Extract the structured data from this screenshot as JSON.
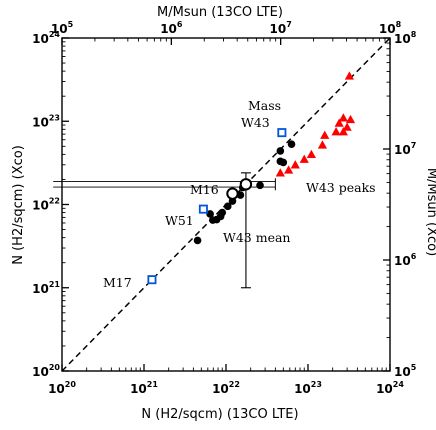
{
  "chart_data": {
    "type": "scatter",
    "title": "",
    "xlabel": "N (H2/sqcm)  (13CO LTE)",
    "ylabel": "N (H2/sqcm)  (Xco)",
    "top_xlabel": "M/Msun  (13CO LTE)",
    "right_ylabel": "M/Msun  (Xco)",
    "scale": "log",
    "xlim": [
      1e+20,
      1e+24
    ],
    "ylim": [
      1e+20,
      1e+24
    ],
    "top_xlim": [
      100000.0,
      100000000.0
    ],
    "right_ylim": [
      100000.0,
      100000000.0
    ],
    "ticks_bottom": [
      {
        "base": "10",
        "exp": "20"
      },
      {
        "base": "10",
        "exp": "21"
      },
      {
        "base": "10",
        "exp": "22"
      },
      {
        "base": "10",
        "exp": "23"
      },
      {
        "base": "10",
        "exp": "24"
      }
    ],
    "ticks_left": [
      {
        "base": "10",
        "exp": "20"
      },
      {
        "base": "10",
        "exp": "21"
      },
      {
        "base": "10",
        "exp": "22"
      },
      {
        "base": "10",
        "exp": "23"
      },
      {
        "base": "10",
        "exp": "24"
      }
    ],
    "ticks_top": [
      {
        "base": "10",
        "exp": "5"
      },
      {
        "base": "10",
        "exp": "6"
      },
      {
        "base": "10",
        "exp": "7"
      },
      {
        "base": "10",
        "exp": "8"
      }
    ],
    "ticks_right": [
      {
        "base": "10",
        "exp": "5"
      },
      {
        "base": "10",
        "exp": "6"
      },
      {
        "base": "10",
        "exp": "7"
      },
      {
        "base": "10",
        "exp": "8"
      }
    ],
    "one_to_one_line": {
      "x": [
        1e+20,
        1e+24
      ],
      "y": [
        1e+20,
        1e+24
      ],
      "style": "dashed"
    },
    "series": [
      {
        "marker": "filled-circle",
        "color": "#000000",
        "points": [
          {
            "x": 5e+22,
            "y": 3.2e+22
          },
          {
            "x": 6.3e+22,
            "y": 5.3e+22
          },
          {
            "x": 4.6e+22,
            "y": 4.4e+22
          },
          {
            "x": 4.6e+22,
            "y": 3.3e+22
          },
          {
            "x": 2.6e+22,
            "y": 1.7e+22
          },
          {
            "x": 1.6e+22,
            "y": 1.6e+22
          },
          {
            "x": 1.5e+22,
            "y": 1.3e+22
          },
          {
            "x": 1.2e+22,
            "y": 1.1e+22
          },
          {
            "x": 1.05e+22,
            "y": 9.5e+21
          },
          {
            "x": 9e+21,
            "y": 8e+21
          },
          {
            "x": 8.6e+21,
            "y": 7.2e+21
          },
          {
            "x": 7.7e+21,
            "y": 6.6e+21
          },
          {
            "x": 6.9e+21,
            "y": 6.5e+21
          },
          {
            "x": 6.4e+21,
            "y": 7.7e+21
          },
          {
            "x": 4.5e+21,
            "y": 3.7e+21
          }
        ]
      },
      {
        "marker": "filled-triangle",
        "color": "#ff0000",
        "points": [
          {
            "x": 3.2e+23,
            "y": 3.5e+23
          },
          {
            "x": 2.7e+23,
            "y": 1.1e+23
          },
          {
            "x": 3.3e+23,
            "y": 1.05e+23
          },
          {
            "x": 2.4e+23,
            "y": 9.5e+22
          },
          {
            "x": 3e+23,
            "y": 8.5e+22
          },
          {
            "x": 2.7e+23,
            "y": 7.5e+22
          },
          {
            "x": 2.2e+23,
            "y": 7.5e+22
          },
          {
            "x": 1.6e+23,
            "y": 6.8e+22
          },
          {
            "x": 1.5e+23,
            "y": 5.2e+22
          },
          {
            "x": 1.1e+23,
            "y": 4e+22
          },
          {
            "x": 9e+22,
            "y": 3.5e+22
          },
          {
            "x": 7e+22,
            "y": 3e+22
          },
          {
            "x": 5.8e+22,
            "y": 2.6e+22
          },
          {
            "x": 4.6e+22,
            "y": 2.4e+22
          }
        ]
      },
      {
        "marker": "open-square",
        "color": "#0055dd",
        "points": [
          {
            "x": 4.8e+22,
            "y": 7.3e+22
          },
          {
            "x": 5.3e+21,
            "y": 8.8e+21
          },
          {
            "x": 1.25e+21,
            "y": 1.25e+21
          }
        ]
      },
      {
        "marker": "open-circle-errorbar",
        "color": "#000000",
        "points": [
          {
            "x": 1.75e+22,
            "y": 1.75e+22,
            "xerr": [
              7.8e+19,
              4e+22
            ],
            "yerr": [
              1e+21,
              2.4e+22
            ]
          },
          {
            "x": 1.2e+22,
            "y": 1.35e+22
          }
        ]
      }
    ],
    "annotations": [
      "Mass",
      "W43",
      "M16",
      "W43 peaks",
      "W51",
      "W43 mean",
      "M17"
    ]
  }
}
